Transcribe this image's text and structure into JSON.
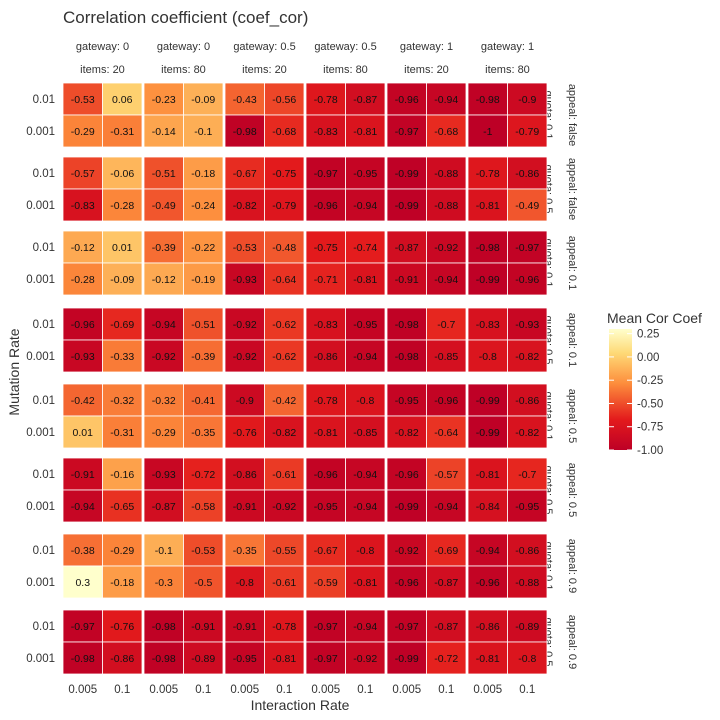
{
  "chart_data": {
    "type": "heatmap",
    "title": "Correlation coefficient (coef_cor)",
    "xlabel": "Interaction Rate",
    "ylabel": "Mutation Rate",
    "x_ticks": [
      "0.005",
      "0.1"
    ],
    "y_ticks": [
      "0.01",
      "0.001"
    ],
    "column_facets": [
      {
        "gateway": "gateway: 0",
        "items": "items: 20"
      },
      {
        "gateway": "gateway: 0",
        "items": "items: 80"
      },
      {
        "gateway": "gateway: 0.5",
        "items": "items: 20"
      },
      {
        "gateway": "gateway: 0.5",
        "items": "items: 80"
      },
      {
        "gateway": "gateway: 1",
        "items": "items: 20"
      },
      {
        "gateway": "gateway: 1",
        "items": "items: 80"
      }
    ],
    "row_facets": [
      {
        "quota": "quota: 0.1",
        "appeal": "appeal: false"
      },
      {
        "quota": "quota: 0.5",
        "appeal": "appeal: false"
      },
      {
        "quota": "quota: 0.1",
        "appeal": "appeal: 0.1"
      },
      {
        "quota": "quota: 0.5",
        "appeal": "appeal: 0.1"
      },
      {
        "quota": "quota: 0.1",
        "appeal": "appeal: 0.5"
      },
      {
        "quota": "quota: 0.5",
        "appeal": "appeal: 0.5"
      },
      {
        "quota": "quota: 0.1",
        "appeal": "appeal: 0.9"
      },
      {
        "quota": "quota: 0.5",
        "appeal": "appeal: 0.9"
      }
    ],
    "legend": {
      "title": "Mean Cor Coef",
      "placement": "right",
      "ticks": [
        "0.25",
        "0.00",
        "-0.25",
        "-0.50",
        "-0.75",
        "-1.00"
      ],
      "tick_values": [
        0.25,
        0,
        -0.25,
        -0.5,
        -0.75,
        -1.0
      ],
      "range": [
        -1.0,
        0.3
      ]
    },
    "colors": {
      "low": "#bd0026",
      "mid_low": "#e31a1c",
      "mid": "#fd8d3c",
      "mid_high": "#fed976",
      "high": "#ffffcc"
    },
    "panels": [
      [
        [
          [
            -0.53,
            0.06
          ],
          [
            -0.29,
            -0.31
          ]
        ],
        [
          [
            -0.23,
            -0.09
          ],
          [
            -0.14,
            -0.1
          ]
        ],
        [
          [
            -0.43,
            -0.56
          ],
          [
            -0.98,
            -0.68
          ]
        ],
        [
          [
            -0.78,
            -0.87
          ],
          [
            -0.83,
            -0.81
          ]
        ],
        [
          [
            -0.96,
            -0.94
          ],
          [
            -0.97,
            -0.68
          ]
        ],
        [
          [
            -0.98,
            -0.9
          ],
          [
            -1,
            -0.79
          ]
        ]
      ],
      [
        [
          [
            -0.57,
            -0.06
          ],
          [
            -0.83,
            -0.28
          ]
        ],
        [
          [
            -0.51,
            -0.18
          ],
          [
            -0.49,
            -0.24
          ]
        ],
        [
          [
            -0.67,
            -0.75
          ],
          [
            -0.82,
            -0.79
          ]
        ],
        [
          [
            -0.97,
            -0.95
          ],
          [
            -0.96,
            -0.94
          ]
        ],
        [
          [
            -0.99,
            -0.88
          ],
          [
            -0.99,
            -0.88
          ]
        ],
        [
          [
            -0.78,
            -0.86
          ],
          [
            -0.81,
            -0.49
          ]
        ]
      ],
      [
        [
          [
            -0.12,
            0.01
          ],
          [
            -0.28,
            -0.09
          ]
        ],
        [
          [
            -0.39,
            -0.22
          ],
          [
            -0.12,
            -0.19
          ]
        ],
        [
          [
            -0.53,
            -0.48
          ],
          [
            -0.93,
            -0.64
          ]
        ],
        [
          [
            -0.75,
            -0.74
          ],
          [
            -0.71,
            -0.81
          ]
        ],
        [
          [
            -0.87,
            -0.92
          ],
          [
            -0.91,
            -0.94
          ]
        ],
        [
          [
            -0.98,
            -0.97
          ],
          [
            -0.99,
            -0.96
          ]
        ]
      ],
      [
        [
          [
            -0.96,
            -0.69
          ],
          [
            -0.93,
            -0.33
          ]
        ],
        [
          [
            -0.94,
            -0.51
          ],
          [
            -0.92,
            -0.39
          ]
        ],
        [
          [
            -0.92,
            -0.62
          ],
          [
            -0.92,
            -0.62
          ]
        ],
        [
          [
            -0.83,
            -0.95
          ],
          [
            -0.86,
            -0.94
          ]
        ],
        [
          [
            -0.98,
            -0.7
          ],
          [
            -0.98,
            -0.85
          ]
        ],
        [
          [
            -0.83,
            -0.93
          ],
          [
            -0.8,
            -0.82
          ]
        ]
      ],
      [
        [
          [
            -0.42,
            -0.32
          ],
          [
            0.01,
            -0.31
          ]
        ],
        [
          [
            -0.32,
            -0.41
          ],
          [
            -0.29,
            -0.35
          ]
        ],
        [
          [
            -0.9,
            -0.42
          ],
          [
            -0.76,
            -0.82
          ]
        ],
        [
          [
            -0.78,
            -0.8
          ],
          [
            -0.81,
            -0.85
          ]
        ],
        [
          [
            -0.95,
            -0.96
          ],
          [
            -0.82,
            -0.64
          ]
        ],
        [
          [
            -0.99,
            -0.86
          ],
          [
            -0.99,
            -0.82
          ]
        ]
      ],
      [
        [
          [
            -0.91,
            -0.16
          ],
          [
            -0.94,
            -0.65
          ]
        ],
        [
          [
            -0.93,
            -0.72
          ],
          [
            -0.87,
            -0.58
          ]
        ],
        [
          [
            -0.86,
            -0.61
          ],
          [
            -0.91,
            -0.92
          ]
        ],
        [
          [
            -0.96,
            -0.94
          ],
          [
            -0.95,
            -0.94
          ]
        ],
        [
          [
            -0.96,
            -0.57
          ],
          [
            -0.99,
            -0.94
          ]
        ],
        [
          [
            -0.81,
            -0.7
          ],
          [
            -0.84,
            -0.95
          ]
        ]
      ],
      [
        [
          [
            -0.38,
            -0.29
          ],
          [
            0.3,
            -0.18
          ]
        ],
        [
          [
            -0.1,
            -0.53
          ],
          [
            -0.3,
            -0.5
          ]
        ],
        [
          [
            -0.35,
            -0.55
          ],
          [
            -0.8,
            -0.61
          ]
        ],
        [
          [
            -0.67,
            -0.8
          ],
          [
            -0.59,
            -0.81
          ]
        ],
        [
          [
            -0.92,
            -0.69
          ],
          [
            -0.96,
            -0.87
          ]
        ],
        [
          [
            -0.94,
            -0.86
          ],
          [
            -0.96,
            -0.88
          ]
        ]
      ],
      [
        [
          [
            -0.97,
            -0.76
          ],
          [
            -0.98,
            -0.86
          ]
        ],
        [
          [
            -0.98,
            -0.91
          ],
          [
            -0.98,
            -0.89
          ]
        ],
        [
          [
            -0.91,
            -0.78
          ],
          [
            -0.95,
            -0.81
          ]
        ],
        [
          [
            -0.97,
            -0.94
          ],
          [
            -0.97,
            -0.92
          ]
        ],
        [
          [
            -0.97,
            -0.87
          ],
          [
            -0.99,
            -0.72
          ]
        ],
        [
          [
            -0.86,
            -0.89
          ],
          [
            -0.81,
            -0.8
          ]
        ]
      ]
    ]
  }
}
